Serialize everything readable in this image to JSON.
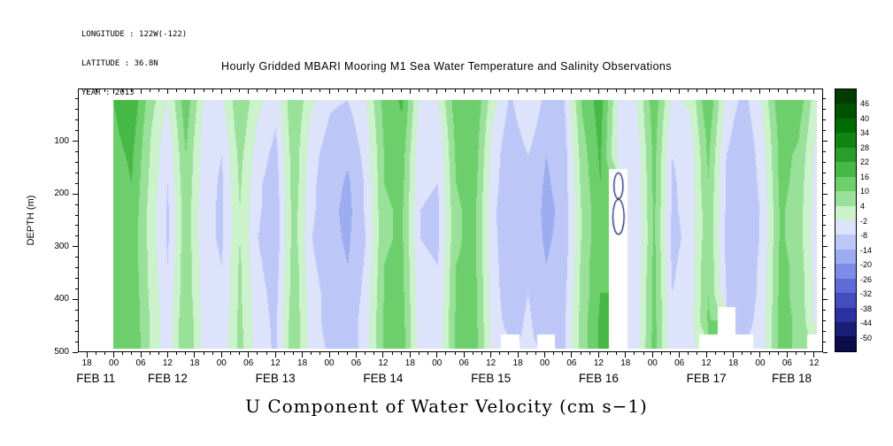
{
  "header": {
    "longitude": "LONGITUDE : 122W(-122)",
    "latitude": "LATITUDE : 36.8N",
    "year": "YEAR : 2013"
  },
  "title": "Hourly Gridded MBARI Mooring M1 Sea Water Temperature and Salinity Observations",
  "caption": "U Component of Water Velocity (cm s−1)",
  "chart_data": {
    "type": "heatmap",
    "title": "Hourly Gridded MBARI Mooring M1 Sea Water Temperature and Salinity Observations",
    "xlabel": "U Component of Water Velocity (cm s−1)",
    "ylabel": "DEPTH (m)",
    "ylim": [
      0,
      500
    ],
    "y_ticks": [
      100,
      200,
      300,
      400,
      500
    ],
    "y_minor_step": 20,
    "x_axis": {
      "t0_hours": 16,
      "t1_hours": 182,
      "major_tick_start": 18,
      "major_tick_step": 6,
      "minor_tick_step": 2,
      "hour_labels": [
        "18",
        "00",
        "06",
        "12",
        "18",
        "00",
        "06",
        "12",
        "18",
        "00",
        "06",
        "12",
        "18",
        "00",
        "06",
        "12",
        "18",
        "00",
        "06",
        "12",
        "18",
        "00",
        "06",
        "12",
        "18",
        "00",
        "06",
        "12"
      ],
      "date_labels": [
        {
          "label": "FEB 11",
          "center_hour": 20
        },
        {
          "label": "FEB 12",
          "center_hour": 36
        },
        {
          "label": "FEB 13",
          "center_hour": 60
        },
        {
          "label": "FEB 14",
          "center_hour": 84
        },
        {
          "label": "FEB 15",
          "center_hour": 108
        },
        {
          "label": "FEB 16",
          "center_hour": 132
        },
        {
          "label": "FEB 17",
          "center_hour": 156
        },
        {
          "label": "FEB 18",
          "center_hour": 175
        }
      ]
    },
    "colorbar": {
      "units": "cm s−1",
      "edges": [
        46,
        40,
        34,
        28,
        22,
        16,
        10,
        4,
        -2,
        -8,
        -14,
        -20,
        -26,
        -32,
        -38,
        -44,
        -50
      ],
      "label_values": [
        "46",
        "40",
        "34",
        "28",
        "22",
        "16",
        "10",
        "4",
        "-2",
        "-8",
        "-14",
        "-20",
        "-26",
        "-32",
        "-38",
        "-44",
        "-50"
      ],
      "band_colors": [
        "#003b00",
        "#005200",
        "#006b00",
        "#128412",
        "#2a9e2a",
        "#46b846",
        "#6ccf6c",
        "#99e099",
        "#ccf2cc",
        "#dde3fb",
        "#bdc7f7",
        "#9dabf1",
        "#7d8de7",
        "#5e6cd7",
        "#424dc0",
        "#2b32a0",
        "#191f76",
        "#0a0d4a"
      ]
    },
    "grid": {
      "note": "estimated U velocity (cm/s), rows = depths 20..490 m, cols = time Feb 12 00h .. Feb 18 14h, null = missing data",
      "depth_start": 20,
      "depth_end": 490,
      "values": [
        [
          16,
          21,
          7,
          -2,
          14,
          -2,
          -3,
          9,
          0,
          -6,
          10,
          -1,
          -7,
          -8,
          -2,
          12,
          17,
          -3,
          -2,
          14,
          16,
          1,
          -9,
          -2,
          -10,
          -8,
          11,
          19,
          -2,
          -2,
          14,
          -3,
          -1,
          16,
          -4,
          -10,
          -1,
          15,
          14,
          0
        ],
        [
          15,
          19,
          5,
          -5,
          12,
          -4,
          -6,
          8,
          -3,
          -8,
          9,
          -4,
          -9,
          -11,
          -4,
          11,
          15,
          -5,
          -5,
          12,
          15,
          -2,
          -11,
          -5,
          -12,
          -10,
          9,
          18,
          -3,
          -4,
          13,
          -6,
          -3,
          13,
          -6,
          -12,
          -3,
          13,
          11,
          -2
        ],
        [
          14,
          17,
          4,
          -7,
          10,
          -5,
          -8,
          6,
          -5,
          -10,
          8,
          -6,
          -11,
          -13,
          -6,
          10,
          13,
          -7,
          -7,
          11,
          14,
          -4,
          -13,
          -8,
          -14,
          -11,
          7,
          17,
          -4,
          -6,
          12,
          -8,
          -5,
          11,
          -8,
          -13,
          -5,
          12,
          9,
          -4
        ],
        [
          13,
          16,
          3,
          -8,
          9,
          -5,
          -9,
          5,
          -7,
          -11,
          8,
          -7,
          -11,
          -15,
          -7,
          10,
          12,
          -7,
          -8,
          10,
          13,
          -5,
          -13,
          -9,
          -15,
          -11,
          6,
          16,
          null,
          -7,
          12,
          -9,
          -5,
          10,
          -9,
          -13,
          -6,
          12,
          8,
          -5
        ],
        [
          12,
          15,
          2,
          -9,
          8,
          -6,
          -9,
          4,
          -7,
          -12,
          7,
          -7,
          -12,
          -16,
          -7,
          9,
          11,
          -8,
          -9,
          9,
          12,
          -6,
          -14,
          -9,
          -16,
          -12,
          5,
          15,
          null,
          -7,
          11,
          -9,
          -6,
          9,
          -9,
          -14,
          -7,
          11,
          7,
          -5
        ],
        [
          12,
          14,
          2,
          -9,
          8,
          -6,
          -9,
          4,
          -8,
          -12,
          7,
          -8,
          -12,
          -15,
          -8,
          9,
          11,
          -8,
          -9,
          9,
          12,
          -6,
          -13,
          -10,
          -15,
          -12,
          5,
          15,
          null,
          -8,
          11,
          -10,
          -6,
          9,
          -10,
          -13,
          -7,
          11,
          7,
          -6
        ],
        [
          13,
          14,
          3,
          -8,
          9,
          -5,
          -8,
          5,
          -7,
          -11,
          8,
          -7,
          -11,
          -14,
          -7,
          10,
          12,
          -7,
          -8,
          10,
          12,
          -5,
          -13,
          -9,
          -14,
          -11,
          6,
          16,
          null,
          -7,
          12,
          -9,
          -5,
          10,
          -9,
          -13,
          -6,
          12,
          8,
          -5
        ],
        [
          13,
          15,
          3,
          -7,
          9,
          -5,
          -8,
          5,
          -6,
          -10,
          8,
          -6,
          -10,
          -13,
          -6,
          10,
          12,
          -6,
          -7,
          10,
          13,
          -5,
          -12,
          -8,
          -13,
          -10,
          6,
          16,
          null,
          -6,
          12,
          -8,
          -5,
          10,
          -8,
          -12,
          -6,
          12,
          8,
          -4
        ],
        [
          14,
          15,
          4,
          -6,
          10,
          -4,
          -7,
          6,
          -6,
          -9,
          9,
          -6,
          -10,
          -12,
          -5,
          11,
          13,
          -6,
          -6,
          11,
          13,
          -4,
          -11,
          -7,
          -12,
          -9,
          7,
          17,
          null,
          -6,
          12,
          -7,
          -4,
          11,
          null,
          -11,
          -5,
          12,
          9,
          -4
        ],
        [
          14,
          16,
          4,
          -6,
          10,
          -4,
          -7,
          6,
          -5,
          -9,
          9,
          -5,
          -9,
          -12,
          -5,
          11,
          13,
          -5,
          -6,
          11,
          14,
          -4,
          null,
          -7,
          null,
          -9,
          7,
          17,
          null,
          -5,
          13,
          -7,
          -4,
          null,
          null,
          null,
          -5,
          12,
          9,
          null
        ]
      ]
    },
    "annotations": {
      "outline_color": "#1a1f6e",
      "missing_column_blobs": [
        {
          "fx": 0.718,
          "fy": 0.345,
          "frx": 0.0065,
          "fry": 0.052
        },
        {
          "fx": 0.718,
          "fy": 0.47,
          "frx": 0.008,
          "fry": 0.07
        }
      ]
    }
  }
}
